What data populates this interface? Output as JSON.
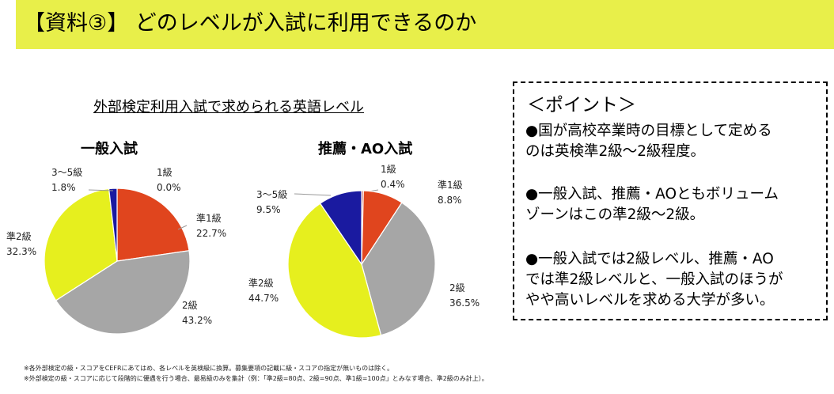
{
  "header": {
    "title": "【資料③】 どのレベルが入試に利用できるのか"
  },
  "chart_group_title": "外部検定利用入試で求められる英語レベル",
  "chart_data": [
    {
      "type": "pie",
      "title": "一般入試",
      "slices": [
        {
          "label": "1級",
          "value": 0.0,
          "value_text": "0.0%",
          "color": "#c0504d"
        },
        {
          "label": "準1級",
          "value": 22.7,
          "value_text": "22.7%",
          "color": "#e0451e"
        },
        {
          "label": "2級",
          "value": 43.2,
          "value_text": "43.2%",
          "color": "#a6a6a6"
        },
        {
          "label": "準2級",
          "value": 32.3,
          "value_text": "32.3%",
          "color": "#e6ef1e"
        },
        {
          "label": "3～5級",
          "value": 1.8,
          "value_text": "1.8%",
          "color": "#1a1aa0"
        }
      ]
    },
    {
      "type": "pie",
      "title": "推薦・AO入試",
      "slices": [
        {
          "label": "1級",
          "value": 0.4,
          "value_text": "0.4%",
          "color": "#c0504d"
        },
        {
          "label": "準1級",
          "value": 8.8,
          "value_text": "8.8%",
          "color": "#e0451e"
        },
        {
          "label": "2級",
          "value": 36.5,
          "value_text": "36.5%",
          "color": "#a6a6a6"
        },
        {
          "label": "準2級",
          "value": 44.7,
          "value_text": "44.7%",
          "color": "#e6ef1e"
        },
        {
          "label": "3～5級",
          "value": 9.5,
          "value_text": "9.5%",
          "color": "#1a1aa0"
        }
      ]
    }
  ],
  "point": {
    "title": "＜ポイント＞",
    "bullets": [
      [
        "●国が高校卒業時の目標として定める",
        "のは英検準2級～2級程度。"
      ],
      [
        "●一般入試、推薦・AOともボリューム",
        "ゾーンはこの準2級～2級。"
      ],
      [
        "●一般入試では2級レベル、推薦・AO",
        "では準2級レベルと、一般入試のほうが",
        "やや高いレベルを求める大学が多い。"
      ]
    ]
  },
  "notes": [
    "※各外部検定の級・スコアをCEFRにあてはめ、各レベルを英検級に換算。募集要項の記載に級・スコアの指定が無いものは除く。",
    "※外部検定の級・スコアに応じて段階的に優遇を行う場合、最易級のみを集計（例：「準2級=80点、2級=90点、準1級=100点」とみなす場合、準2級のみ計上）。"
  ]
}
